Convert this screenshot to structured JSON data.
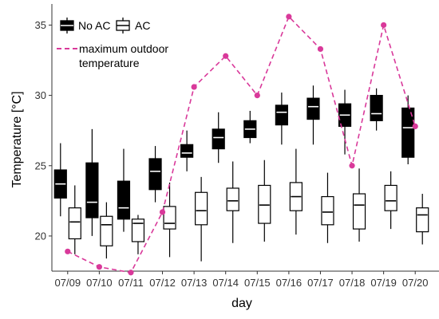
{
  "chart_data": {
    "type": "box",
    "title": "",
    "xlabel": "day",
    "ylabel": "Temperature [°C]",
    "categories": [
      "07/09",
      "07/10",
      "07/11",
      "07/12",
      "07/13",
      "07/14",
      "07/15",
      "07/16",
      "07/17",
      "07/18",
      "07/19",
      "07/20"
    ],
    "ylim": [
      17.5,
      36.5
    ],
    "yticks": [
      20,
      25,
      30,
      35
    ],
    "grid": false,
    "legend_position": "top-left",
    "series": [
      {
        "name": "No AC",
        "kind": "box",
        "fill": "#000000",
        "median_color": "#ffffff",
        "boxes": [
          {
            "whisker_low": 21.4,
            "q1": 22.7,
            "median": 23.7,
            "q3": 24.7,
            "whisker_high": 26.6
          },
          {
            "whisker_low": 20.0,
            "q1": 21.3,
            "median": 22.4,
            "q3": 25.2,
            "whisker_high": 27.6
          },
          {
            "whisker_low": 20.3,
            "q1": 21.2,
            "median": 22.0,
            "q3": 23.9,
            "whisker_high": 26.2
          },
          {
            "whisker_low": 22.4,
            "q1": 23.3,
            "median": 24.6,
            "q3": 25.5,
            "whisker_high": 26.4
          },
          {
            "whisker_low": 24.6,
            "q1": 25.6,
            "median": 25.9,
            "q3": 26.5,
            "whisker_high": 27.5
          },
          {
            "whisker_low": 25.2,
            "q1": 26.2,
            "median": 27.0,
            "q3": 27.6,
            "whisker_high": 28.8
          },
          {
            "whisker_low": 26.6,
            "q1": 27.0,
            "median": 27.6,
            "q3": 28.2,
            "whisker_high": 28.9
          },
          {
            "whisker_low": 26.5,
            "q1": 27.9,
            "median": 28.8,
            "q3": 29.3,
            "whisker_high": 30.2
          },
          {
            "whisker_low": 26.5,
            "q1": 28.3,
            "median": 29.2,
            "q3": 29.8,
            "whisker_high": 30.7
          },
          {
            "whisker_low": 25.8,
            "q1": 27.8,
            "median": 28.6,
            "q3": 29.4,
            "whisker_high": 30.4
          },
          {
            "whisker_low": 27.5,
            "q1": 28.2,
            "median": 28.7,
            "q3": 30.0,
            "whisker_high": 30.5
          },
          {
            "whisker_low": 25.1,
            "q1": 25.6,
            "median": 27.7,
            "q3": 29.1,
            "whisker_high": 30.0
          }
        ]
      },
      {
        "name": "AC",
        "kind": "box",
        "fill": "#ffffff",
        "median_color": "#000000",
        "boxes": [
          {
            "whisker_low": 18.7,
            "q1": 19.8,
            "median": 21.0,
            "q3": 22.0,
            "whisker_high": 23.6
          },
          {
            "whisker_low": 18.4,
            "q1": 19.3,
            "median": 20.8,
            "q3": 21.4,
            "whisker_high": 22.4
          },
          {
            "whisker_low": 18.7,
            "q1": 19.6,
            "median": 20.9,
            "q3": 21.2,
            "whisker_high": 21.5
          },
          {
            "whisker_low": 18.5,
            "q1": 20.5,
            "median": 20.9,
            "q3": 22.1,
            "whisker_high": 23.8
          },
          {
            "whisker_low": 18.2,
            "q1": 20.8,
            "median": 21.8,
            "q3": 23.1,
            "whisker_high": 24.2
          },
          {
            "whisker_low": 19.5,
            "q1": 21.8,
            "median": 22.5,
            "q3": 23.4,
            "whisker_high": 25.3
          },
          {
            "whisker_low": 19.6,
            "q1": 20.9,
            "median": 22.2,
            "q3": 23.6,
            "whisker_high": 25.4
          },
          {
            "whisker_low": 20.1,
            "q1": 21.8,
            "median": 22.8,
            "q3": 23.8,
            "whisker_high": 26.2
          },
          {
            "whisker_low": 19.5,
            "q1": 20.8,
            "median": 21.7,
            "q3": 22.8,
            "whisker_high": 24.5
          },
          {
            "whisker_low": 19.6,
            "q1": 20.5,
            "median": 22.2,
            "q3": 23.0,
            "whisker_high": 24.8
          },
          {
            "whisker_low": 20.5,
            "q1": 21.8,
            "median": 22.5,
            "q3": 23.6,
            "whisker_high": 24.6
          },
          {
            "whisker_low": 19.4,
            "q1": 20.3,
            "median": 21.5,
            "q3": 22.0,
            "whisker_high": 23.0
          }
        ]
      },
      {
        "name": "maximum outdoor\ntemperature",
        "kind": "line",
        "style": "dashed",
        "color": "#d9399a",
        "values": [
          18.9,
          17.8,
          17.4,
          21.7,
          30.6,
          32.8,
          30.0,
          35.6,
          33.3,
          25.0,
          35.0,
          27.8
        ]
      }
    ]
  }
}
